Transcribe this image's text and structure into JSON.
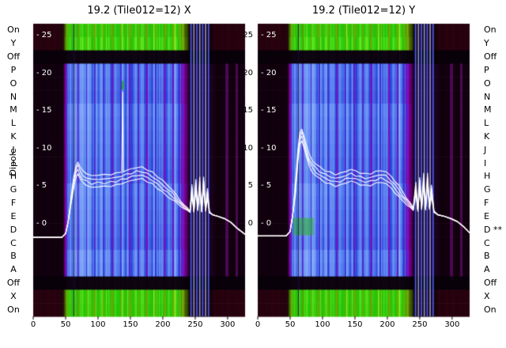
{
  "figure": {
    "ylabel": "Dipole",
    "row_labels_left": [
      "On",
      "Y",
      "Off",
      "P",
      "O",
      "N",
      "M",
      "L",
      "K",
      "J",
      "I",
      "H",
      "G",
      "F",
      "E",
      "D",
      "C",
      "B",
      "A",
      "Off",
      "X",
      "On"
    ],
    "row_labels_right": [
      "On",
      "Y",
      "Off",
      "P",
      "O",
      "N",
      "M",
      "L",
      "K",
      "J",
      "I",
      "H",
      "G",
      "F",
      "E",
      "D **",
      "C",
      "B",
      "A",
      "Off",
      "X",
      "On"
    ],
    "ytick_labels_inner": [
      "- 25",
      "- 20",
      "- 15",
      "- 10",
      "- 5",
      "- 0"
    ],
    "ytick_labels_gap": [
      "25",
      "20",
      "15",
      "10",
      "5",
      "0"
    ],
    "xtick_labels": [
      "0",
      "50",
      "100",
      "150",
      "200",
      "250",
      "300"
    ]
  },
  "palette": {
    "background": "#ffffff",
    "text": "#000000",
    "trace": "#ffffff",
    "dipole_ramp": [
      "#16001c",
      "#9600b4",
      "#2a3fd8",
      "#5d86f2"
    ],
    "green_ramp": [
      "#0c1a02",
      "#7aa806",
      "#22c40a",
      "#55e81c"
    ],
    "maroon_edge": "#2c0310",
    "dark_edge": "#140110",
    "cluster_bg": "#1a0122",
    "off_row": "#080109",
    "rfi_bright": [
      "#5668ff",
      "#96a6ff"
    ],
    "rfi_dark": "#1a0848",
    "purple_column": "#4a0853",
    "spike_green": "#28aa19"
  },
  "chart_data": [
    {
      "type": "heatmap",
      "title": "19.2 (Tile012=12) X",
      "x_range": [
        0,
        327
      ],
      "xticks": [
        0,
        50,
        100,
        150,
        200,
        250,
        300
      ],
      "y_ticks": [
        25,
        20,
        15,
        10,
        5,
        0
      ],
      "rows": [
        "On",
        "Y",
        "Off",
        "P",
        "O",
        "N",
        "M",
        "L",
        "K",
        "J",
        "I",
        "H",
        "G",
        "F",
        "E",
        "D",
        "C",
        "B",
        "A",
        "Off",
        "X",
        "On"
      ],
      "row_kinds": {
        "green": [
          0,
          1,
          20,
          21
        ],
        "off": [
          2,
          19
        ],
        "dipole": [
          3,
          4,
          5,
          6,
          7,
          8,
          9,
          10,
          11,
          12,
          13,
          14,
          15,
          16,
          17,
          18
        ]
      },
      "band": {
        "start": 46,
        "full": 56,
        "fade": 222,
        "end": 240
      },
      "rfi_dark_line": 62,
      "rfi_bright_lines": [
        243.5,
        248,
        252.5,
        257,
        261.5,
        266,
        270.5
      ],
      "purple_columns": [
        [
          296,
          301
        ],
        [
          312,
          316
        ]
      ],
      "trace_offsets": [
        0,
        -0.55,
        -1.05,
        -1.55
      ],
      "overlay_trace": [
        [
          0,
          -1.8
        ],
        [
          44,
          -1.8
        ],
        [
          50,
          -1.3
        ],
        [
          54,
          0.3
        ],
        [
          58,
          3.2
        ],
        [
          62,
          6.0
        ],
        [
          66,
          7.8
        ],
        [
          69,
          8.3
        ],
        [
          72,
          7.6
        ],
        [
          76,
          7.0
        ],
        [
          82,
          6.7
        ],
        [
          90,
          6.4
        ],
        [
          100,
          6.5
        ],
        [
          110,
          6.5
        ],
        [
          120,
          6.6
        ],
        [
          128,
          6.7
        ],
        [
          136,
          6.9
        ],
        [
          144,
          7.1
        ],
        [
          152,
          7.3
        ],
        [
          160,
          7.5
        ],
        [
          168,
          7.5
        ],
        [
          176,
          7.2
        ],
        [
          184,
          6.8
        ],
        [
          192,
          6.3
        ],
        [
          200,
          5.7
        ],
        [
          208,
          5.1
        ],
        [
          214,
          4.6
        ],
        [
          220,
          3.9
        ],
        [
          227,
          3.1
        ],
        [
          233,
          2.5
        ],
        [
          238,
          2.1
        ],
        [
          242,
          1.7
        ],
        [
          245,
          5.3
        ],
        [
          248,
          1.8
        ],
        [
          251,
          5.9
        ],
        [
          254,
          2.1
        ],
        [
          257,
          6.1
        ],
        [
          260,
          1.8
        ],
        [
          263,
          6.3
        ],
        [
          266,
          2.0
        ],
        [
          269,
          4.7
        ],
        [
          272,
          1.6
        ],
        [
          277,
          1.2
        ],
        [
          285,
          1.0
        ],
        [
          295,
          0.7
        ],
        [
          305,
          0.2
        ],
        [
          315,
          -0.6
        ],
        [
          327,
          -1.4
        ]
      ],
      "spike": {
        "ch": 138,
        "v": 17.6,
        "base": 7.0
      },
      "hot_spots": []
    },
    {
      "type": "heatmap",
      "title": "19.2 (Tile012=12) Y",
      "x_range": [
        0,
        327
      ],
      "xticks": [
        0,
        50,
        100,
        150,
        200,
        250,
        300
      ],
      "y_ticks": [
        25,
        20,
        15,
        10,
        5,
        0
      ],
      "rows": [
        "On",
        "Y",
        "Off",
        "P",
        "O",
        "N",
        "M",
        "L",
        "K",
        "J",
        "I",
        "H",
        "G",
        "F",
        "E",
        "D",
        "C",
        "B",
        "A",
        "Off",
        "X",
        "On"
      ],
      "row_kinds": {
        "green": [
          0,
          1,
          20,
          21
        ],
        "off": [
          2,
          19
        ],
        "dipole": [
          3,
          4,
          5,
          6,
          7,
          8,
          9,
          10,
          11,
          12,
          13,
          14,
          15,
          16,
          17,
          18
        ]
      },
      "band": {
        "start": 46,
        "full": 56,
        "fade": 222,
        "end": 240
      },
      "rfi_dark_line": 62,
      "rfi_bright_lines": [
        243.5,
        248,
        252.5,
        257,
        261.5,
        266,
        270.5
      ],
      "purple_columns": [
        [
          296,
          301
        ],
        [
          312,
          316
        ]
      ],
      "trace_offsets": [
        0,
        -0.55,
        -1.05,
        -1.55
      ],
      "overlay_trace": [
        [
          0,
          -1.6
        ],
        [
          44,
          -1.6
        ],
        [
          50,
          -1.0
        ],
        [
          54,
          1.2
        ],
        [
          58,
          5.2
        ],
        [
          62,
          9.8
        ],
        [
          65,
          12.2
        ],
        [
          68,
          12.7
        ],
        [
          71,
          11.8
        ],
        [
          75,
          10.4
        ],
        [
          79,
          9.3
        ],
        [
          84,
          8.5
        ],
        [
          90,
          7.9
        ],
        [
          96,
          7.5
        ],
        [
          104,
          7.1
        ],
        [
          112,
          6.8
        ],
        [
          120,
          6.6
        ],
        [
          128,
          6.7
        ],
        [
          136,
          7.0
        ],
        [
          144,
          7.2
        ],
        [
          151,
          7.0
        ],
        [
          158,
          6.8
        ],
        [
          166,
          6.6
        ],
        [
          174,
          6.7
        ],
        [
          182,
          6.9
        ],
        [
          190,
          7.1
        ],
        [
          198,
          6.9
        ],
        [
          206,
          6.3
        ],
        [
          212,
          5.7
        ],
        [
          218,
          5.0
        ],
        [
          224,
          4.2
        ],
        [
          230,
          3.4
        ],
        [
          236,
          2.7
        ],
        [
          240,
          2.1
        ],
        [
          244,
          5.6
        ],
        [
          247,
          2.0
        ],
        [
          250,
          6.2
        ],
        [
          253,
          2.3
        ],
        [
          256,
          6.6
        ],
        [
          259,
          2.2
        ],
        [
          262,
          6.8
        ],
        [
          265,
          2.4
        ],
        [
          268,
          5.2
        ],
        [
          272,
          1.7
        ],
        [
          278,
          1.2
        ],
        [
          288,
          1.0
        ],
        [
          298,
          0.7
        ],
        [
          308,
          0.3
        ],
        [
          318,
          -0.4
        ],
        [
          327,
          -1.2
        ]
      ],
      "spike": null,
      "hot_spots": [
        {
          "ch0": 55,
          "ch1": 86,
          "row0": 14.6,
          "row1": 15.9,
          "color": "#23b80d",
          "alpha": 0.5
        }
      ]
    }
  ]
}
